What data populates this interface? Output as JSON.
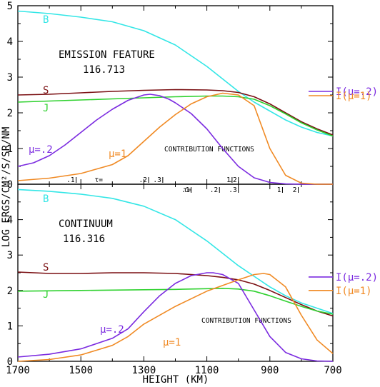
{
  "figure": {
    "ylabel": "LOG ERGS/CM²/S/SR/NM",
    "xlabel": "HEIGHT (KM)",
    "xticks": [
      1700,
      1500,
      1300,
      1100,
      900,
      700
    ],
    "yticks": [
      0,
      1,
      2,
      3,
      4,
      5
    ]
  },
  "colors": {
    "B": "#33e6e6",
    "S": "#7a0f12",
    "J": "#2ed12e",
    "mu02": "#7b2be0",
    "mu1": "#f08a24"
  },
  "chart_data": [
    {
      "type": "line",
      "panel": "top",
      "title": "EMISSION FEATURE",
      "subtitle": "116.713",
      "annotation": "CONTRIBUTION FUNCTIONS",
      "xlim": [
        1700,
        700
      ],
      "ylim": [
        0,
        5
      ],
      "series": [
        {
          "name": "B",
          "label": "B",
          "color_key": "B",
          "x": [
            1700,
            1600,
            1500,
            1400,
            1300,
            1200,
            1100,
            1000,
            950,
            900,
            850,
            800,
            750,
            700
          ],
          "y": [
            4.85,
            4.78,
            4.68,
            4.55,
            4.3,
            3.9,
            3.3,
            2.6,
            2.3,
            2.05,
            1.8,
            1.6,
            1.45,
            1.35
          ]
        },
        {
          "name": "S",
          "label": "S",
          "color_key": "S",
          "x": [
            1700,
            1600,
            1500,
            1400,
            1300,
            1200,
            1100,
            1050,
            1000,
            950,
            900,
            850,
            800,
            750,
            700
          ],
          "y": [
            2.5,
            2.52,
            2.56,
            2.6,
            2.63,
            2.65,
            2.64,
            2.62,
            2.57,
            2.45,
            2.25,
            2.0,
            1.75,
            1.55,
            1.38
          ]
        },
        {
          "name": "J",
          "label": "J",
          "color_key": "J",
          "x": [
            1700,
            1600,
            1500,
            1400,
            1300,
            1200,
            1100,
            1050,
            1000,
            950,
            900,
            850,
            800,
            750,
            700
          ],
          "y": [
            2.3,
            2.33,
            2.36,
            2.39,
            2.42,
            2.45,
            2.47,
            2.47,
            2.45,
            2.38,
            2.2,
            1.97,
            1.72,
            1.52,
            1.35
          ]
        },
        {
          "name": "mu=.2",
          "label": "μ=.2",
          "color_key": "mu02",
          "x": [
            1700,
            1650,
            1600,
            1550,
            1500,
            1450,
            1400,
            1350,
            1300,
            1280,
            1250,
            1220,
            1200,
            1150,
            1100,
            1050,
            1000,
            950,
            900,
            850,
            800,
            750,
            700
          ],
          "y": [
            0.5,
            0.6,
            0.8,
            1.1,
            1.45,
            1.8,
            2.1,
            2.35,
            2.5,
            2.52,
            2.48,
            2.38,
            2.28,
            1.98,
            1.55,
            1.0,
            0.5,
            0.18,
            0.05,
            0.01,
            0.0,
            0.0,
            0.0
          ]
        },
        {
          "name": "mu=1",
          "label": "μ=1",
          "color_key": "mu1",
          "x": [
            1700,
            1600,
            1500,
            1400,
            1350,
            1300,
            1250,
            1200,
            1150,
            1100,
            1050,
            1000,
            950,
            925,
            900,
            850,
            800,
            750,
            700
          ],
          "y": [
            0.1,
            0.17,
            0.3,
            0.55,
            0.8,
            1.2,
            1.6,
            1.95,
            2.25,
            2.45,
            2.55,
            2.5,
            2.2,
            1.6,
            1.0,
            0.25,
            0.03,
            0.0,
            0.0
          ]
        }
      ],
      "side_labels": [
        {
          "text": "I(μ=.2)",
          "y": 2.6,
          "color_key": "mu02"
        },
        {
          "text": "I(μ=1)",
          "y": 2.48,
          "color_key": "mu1"
        }
      ],
      "tau_scales": [
        {
          "prefix": "τ=",
          "marks": [
            {
              "label": ".1",
              "x": 1515
            },
            {
              "label": ".2",
              "x": 1285
            },
            {
              "label": ".3",
              "x": 1240
            },
            {
              "label": "1",
              "x": 1020
            },
            {
              "label": ".2",
              "x": 1000
            }
          ]
        },
        {
          "prefix": "τ=",
          "marks": [
            {
              "label": ".1",
              "x": 1150
            },
            {
              "label": ".2",
              "x": 1060
            },
            {
              "label": ".3",
              "x": 1000
            },
            {
              "label": "1",
              "x": 860
            },
            {
              "label": "2",
              "x": 810
            }
          ]
        }
      ]
    },
    {
      "type": "line",
      "panel": "bottom",
      "title": "CONTINUUM",
      "subtitle": "116.316",
      "annotation": "CONTRIBUTION FUNCTIONS",
      "xlim": [
        1700,
        700
      ],
      "ylim": [
        0,
        5
      ],
      "series": [
        {
          "name": "B",
          "label": "B",
          "color_key": "B",
          "x": [
            1700,
            1600,
            1500,
            1400,
            1300,
            1200,
            1100,
            1000,
            950,
            900,
            850,
            800,
            750,
            700
          ],
          "y": [
            4.85,
            4.8,
            4.72,
            4.6,
            4.38,
            4.0,
            3.4,
            2.7,
            2.4,
            2.1,
            1.85,
            1.65,
            1.5,
            1.35
          ]
        },
        {
          "name": "S",
          "label": "S",
          "color_key": "S",
          "x": [
            1700,
            1600,
            1500,
            1400,
            1300,
            1200,
            1100,
            1050,
            1000,
            950,
            900,
            850,
            800,
            750,
            700
          ],
          "y": [
            2.52,
            2.48,
            2.48,
            2.5,
            2.5,
            2.48,
            2.42,
            2.37,
            2.3,
            2.18,
            2.0,
            1.8,
            1.6,
            1.42,
            1.28
          ]
        },
        {
          "name": "J",
          "label": "J",
          "color_key": "J",
          "x": [
            1700,
            1600,
            1500,
            1400,
            1300,
            1200,
            1100,
            1050,
            1000,
            950,
            900,
            850,
            800,
            750,
            700
          ],
          "y": [
            1.98,
            1.99,
            2.0,
            2.01,
            2.02,
            2.03,
            2.05,
            2.06,
            2.04,
            1.98,
            1.85,
            1.7,
            1.55,
            1.42,
            1.33
          ]
        },
        {
          "name": "mu=.2",
          "label": "μ=.2",
          "color_key": "mu02",
          "x": [
            1700,
            1600,
            1500,
            1400,
            1350,
            1300,
            1250,
            1200,
            1150,
            1100,
            1080,
            1050,
            1000,
            950,
            900,
            850,
            800,
            750,
            700
          ],
          "y": [
            0.12,
            0.2,
            0.35,
            0.65,
            0.92,
            1.4,
            1.85,
            2.2,
            2.42,
            2.5,
            2.5,
            2.45,
            2.2,
            1.45,
            0.7,
            0.25,
            0.07,
            0.01,
            0.0
          ]
        },
        {
          "name": "mu=1",
          "label": "μ=1",
          "color_key": "mu1",
          "x": [
            1700,
            1600,
            1500,
            1400,
            1350,
            1300,
            1200,
            1100,
            1000,
            950,
            920,
            900,
            850,
            800,
            750,
            700
          ],
          "y": [
            0.0,
            0.05,
            0.18,
            0.45,
            0.7,
            1.05,
            1.55,
            1.98,
            2.3,
            2.45,
            2.48,
            2.45,
            2.1,
            1.3,
            0.6,
            0.22
          ]
        }
      ],
      "side_labels": [
        {
          "text": "I(μ=.2)",
          "y": 2.38,
          "color_key": "mu02"
        },
        {
          "text": "I(μ=1)",
          "y": 2.0,
          "color_key": "mu1"
        }
      ]
    }
  ]
}
